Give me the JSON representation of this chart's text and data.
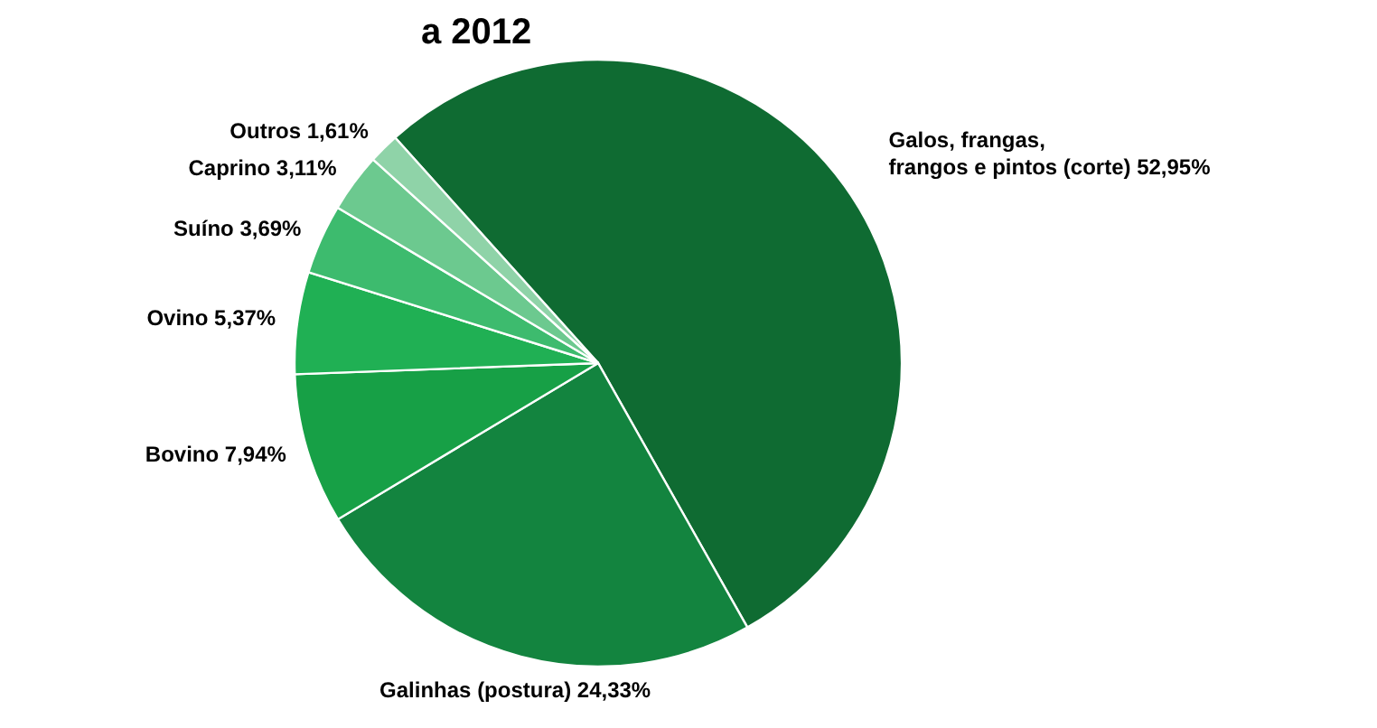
{
  "chart_data": {
    "type": "pie",
    "title": "a 2012",
    "categories": [
      "Galos, frangas, frangos e pintos (corte)",
      "Galinhas (postura)",
      "Bovino",
      "Ovino",
      "Suíno",
      "Caprino",
      "Outros"
    ],
    "values": [
      52.95,
      24.33,
      7.94,
      5.37,
      3.69,
      3.11,
      1.61
    ],
    "value_labels": [
      "52,95%",
      "24,33%",
      "7,94%",
      "5,37%",
      "3,69%",
      "3,11%",
      "1,61%"
    ],
    "colors": [
      "#0f6b32",
      "#13843f",
      "#17a046",
      "#20b054",
      "#3dbb6e",
      "#6cc98f",
      "#8fd3a8"
    ]
  }
}
